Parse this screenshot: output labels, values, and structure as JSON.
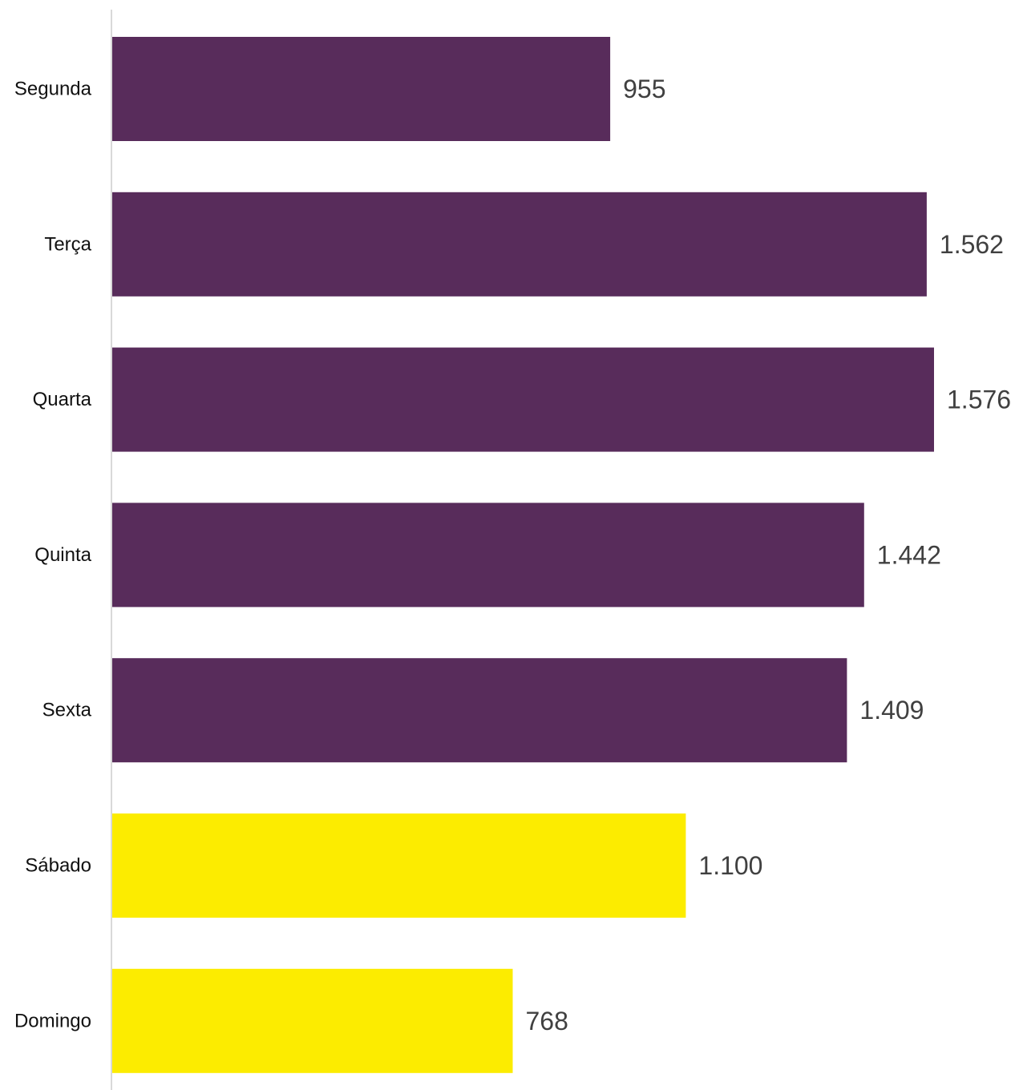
{
  "chart_data": {
    "type": "bar",
    "orientation": "horizontal",
    "title": "",
    "xlabel": "",
    "ylabel": "",
    "grid": false,
    "legend": "none",
    "categories": [
      "Segunda",
      "Terça",
      "Quarta",
      "Quinta",
      "Sexta",
      "Sábado",
      "Domingo"
    ],
    "values": [
      955,
      1562,
      1576,
      1442,
      1409,
      1100,
      768
    ],
    "value_labels": [
      "955",
      "1.562",
      "1.576",
      "1.442",
      "1.409",
      "1.100",
      "768"
    ],
    "xlim": [
      0,
      1576
    ],
    "colors": {
      "weekday": "#582c5b",
      "weekend": "#fcec00",
      "axis": "#d9d9d9"
    },
    "bar_color_keys": [
      "weekday",
      "weekday",
      "weekday",
      "weekday",
      "weekday",
      "weekend",
      "weekend"
    ]
  }
}
